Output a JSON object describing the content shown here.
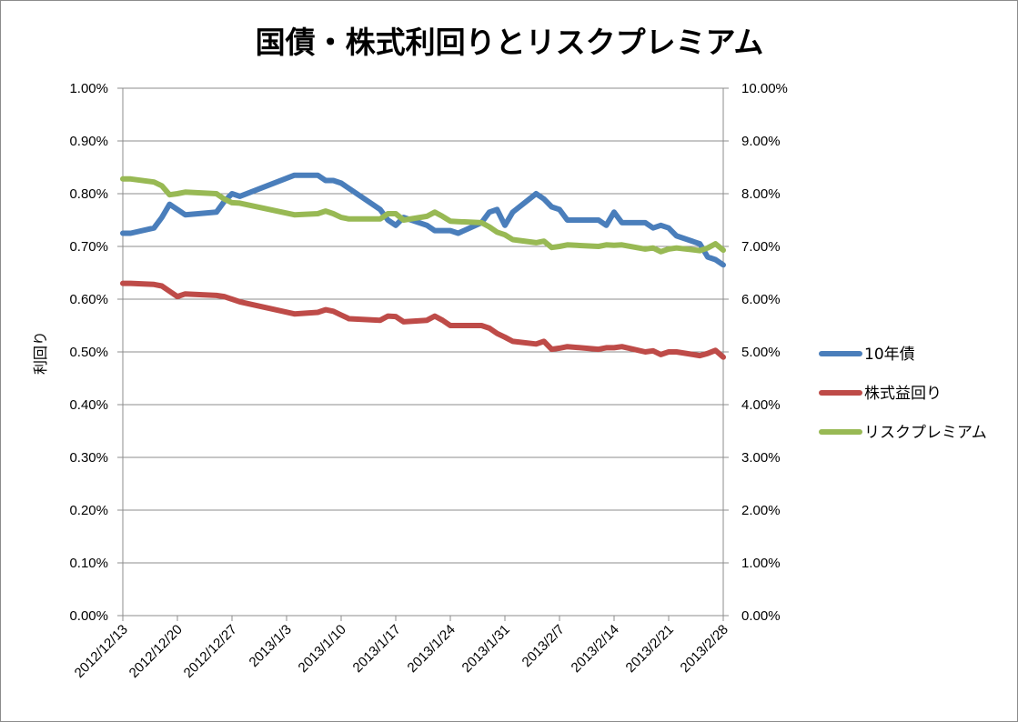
{
  "chart_data": {
    "type": "line",
    "title": "国債・株式利回りとリスクプレミアム",
    "ylabel": "利回り",
    "ylim_left": [
      0,
      0.01
    ],
    "ylim_right": [
      0,
      0.1
    ],
    "yticks_left": [
      "0.00%",
      "0.10%",
      "0.20%",
      "0.30%",
      "0.40%",
      "0.50%",
      "0.60%",
      "0.70%",
      "0.80%",
      "0.90%",
      "1.00%"
    ],
    "yticks_right": [
      "0.00%",
      "1.00%",
      "2.00%",
      "3.00%",
      "4.00%",
      "5.00%",
      "6.00%",
      "7.00%",
      "8.00%",
      "9.00%",
      "10.00%"
    ],
    "xlim": [
      "2012-12-13",
      "2013-02-28"
    ],
    "xticks": [
      "2012/12/13",
      "2012/12/20",
      "2012/12/27",
      "2013/1/3",
      "2013/1/10",
      "2013/1/17",
      "2013/1/24",
      "2013/1/31",
      "2013/2/7",
      "2013/2/14",
      "2013/2/21",
      "2013/2/28"
    ],
    "grid": true,
    "legend_position": "right",
    "series": [
      {
        "name": "10年債",
        "axis": "left",
        "color": "#4a7ebb",
        "x": [
          "2012-12-13",
          "2012-12-14",
          "2012-12-17",
          "2012-12-18",
          "2012-12-19",
          "2012-12-20",
          "2012-12-21",
          "2012-12-25",
          "2012-12-26",
          "2012-12-27",
          "2012-12-28",
          "2013-01-04",
          "2013-01-07",
          "2013-01-08",
          "2013-01-09",
          "2013-01-10",
          "2013-01-11",
          "2013-01-15",
          "2013-01-16",
          "2013-01-17",
          "2013-01-18",
          "2013-01-21",
          "2013-01-22",
          "2013-01-23",
          "2013-01-24",
          "2013-01-25",
          "2013-01-28",
          "2013-01-29",
          "2013-01-30",
          "2013-01-31",
          "2013-02-01",
          "2013-02-04",
          "2013-02-05",
          "2013-02-06",
          "2013-02-07",
          "2013-02-08",
          "2013-02-12",
          "2013-02-13",
          "2013-02-14",
          "2013-02-15",
          "2013-02-18",
          "2013-02-19",
          "2013-02-20",
          "2013-02-21",
          "2013-02-22",
          "2013-02-25",
          "2013-02-26",
          "2013-02-27",
          "2013-02-28"
        ],
        "values": [
          0.00725,
          0.00725,
          0.00735,
          0.00755,
          0.0078,
          0.0077,
          0.0076,
          0.00765,
          0.00785,
          0.008,
          0.00795,
          0.00835,
          0.00835,
          0.00825,
          0.00825,
          0.0082,
          0.0081,
          0.0077,
          0.0075,
          0.0074,
          0.00755,
          0.0074,
          0.0073,
          0.0073,
          0.0073,
          0.00725,
          0.00745,
          0.00765,
          0.0077,
          0.0074,
          0.00765,
          0.008,
          0.0079,
          0.00775,
          0.0077,
          0.0075,
          0.0075,
          0.0074,
          0.00765,
          0.00745,
          0.00745,
          0.00735,
          0.0074,
          0.00735,
          0.0072,
          0.00705,
          0.0068,
          0.00675,
          0.00665
        ]
      },
      {
        "name": "株式益回り",
        "axis": "right",
        "color": "#be4b48",
        "x": [
          "2012-12-13",
          "2012-12-14",
          "2012-12-17",
          "2012-12-18",
          "2012-12-19",
          "2012-12-20",
          "2012-12-21",
          "2012-12-25",
          "2012-12-26",
          "2012-12-27",
          "2012-12-28",
          "2013-01-04",
          "2013-01-07",
          "2013-01-08",
          "2013-01-09",
          "2013-01-10",
          "2013-01-11",
          "2013-01-15",
          "2013-01-16",
          "2013-01-17",
          "2013-01-18",
          "2013-01-21",
          "2013-01-22",
          "2013-01-23",
          "2013-01-24",
          "2013-01-25",
          "2013-01-28",
          "2013-01-29",
          "2013-01-30",
          "2013-01-31",
          "2013-02-01",
          "2013-02-04",
          "2013-02-05",
          "2013-02-06",
          "2013-02-07",
          "2013-02-08",
          "2013-02-12",
          "2013-02-13",
          "2013-02-14",
          "2013-02-15",
          "2013-02-18",
          "2013-02-19",
          "2013-02-20",
          "2013-02-21",
          "2013-02-22",
          "2013-02-25",
          "2013-02-26",
          "2013-02-27",
          "2013-02-28"
        ],
        "values": [
          0.063,
          0.063,
          0.0628,
          0.0625,
          0.0615,
          0.0605,
          0.061,
          0.0607,
          0.0605,
          0.06,
          0.0595,
          0.0572,
          0.0575,
          0.058,
          0.0577,
          0.057,
          0.0563,
          0.056,
          0.0568,
          0.0567,
          0.0557,
          0.056,
          0.0568,
          0.056,
          0.055,
          0.055,
          0.055,
          0.0545,
          0.0535,
          0.0528,
          0.052,
          0.0515,
          0.052,
          0.0505,
          0.0507,
          0.051,
          0.0505,
          0.0508,
          0.0508,
          0.051,
          0.05,
          0.0502,
          0.0495,
          0.05,
          0.05,
          0.0493,
          0.0497,
          0.0503,
          0.049
        ]
      },
      {
        "name": "リスクプレミアム",
        "axis": "right",
        "color": "#98b954",
        "x": [
          "2012-12-13",
          "2012-12-14",
          "2012-12-17",
          "2012-12-18",
          "2012-12-19",
          "2012-12-20",
          "2012-12-21",
          "2012-12-25",
          "2012-12-26",
          "2012-12-27",
          "2012-12-28",
          "2013-01-04",
          "2013-01-07",
          "2013-01-08",
          "2013-01-09",
          "2013-01-10",
          "2013-01-11",
          "2013-01-15",
          "2013-01-16",
          "2013-01-17",
          "2013-01-18",
          "2013-01-21",
          "2013-01-22",
          "2013-01-23",
          "2013-01-24",
          "2013-01-25",
          "2013-01-28",
          "2013-01-29",
          "2013-01-30",
          "2013-01-31",
          "2013-02-01",
          "2013-02-04",
          "2013-02-05",
          "2013-02-06",
          "2013-02-07",
          "2013-02-08",
          "2013-02-12",
          "2013-02-13",
          "2013-02-14",
          "2013-02-15",
          "2013-02-18",
          "2013-02-19",
          "2013-02-20",
          "2013-02-21",
          "2013-02-22",
          "2013-02-25",
          "2013-02-26",
          "2013-02-27",
          "2013-02-28"
        ],
        "values": [
          0.0828,
          0.0828,
          0.0822,
          0.0815,
          0.0798,
          0.08,
          0.0803,
          0.08,
          0.079,
          0.0783,
          0.0782,
          0.076,
          0.0762,
          0.0767,
          0.0762,
          0.0755,
          0.0752,
          0.0752,
          0.0762,
          0.0762,
          0.075,
          0.0757,
          0.0765,
          0.0757,
          0.0748,
          0.0747,
          0.0745,
          0.0737,
          0.0727,
          0.0722,
          0.0713,
          0.0707,
          0.071,
          0.0698,
          0.07,
          0.0703,
          0.07,
          0.0703,
          0.0702,
          0.0703,
          0.0695,
          0.0697,
          0.069,
          0.0695,
          0.0697,
          0.0692,
          0.0697,
          0.0705,
          0.0693
        ]
      }
    ]
  }
}
